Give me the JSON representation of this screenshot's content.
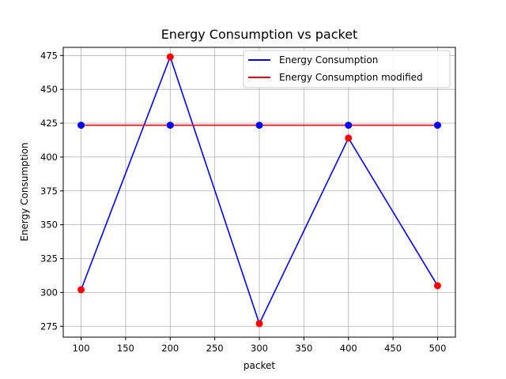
{
  "chart_data": {
    "type": "line",
    "title": "Energy Consumption vs packet",
    "xlabel": "packet",
    "ylabel": "Energy Consumption",
    "x": [
      100,
      200,
      300,
      400,
      500
    ],
    "xlim": [
      80,
      520
    ],
    "ylim": [
      267,
      481
    ],
    "xticks": [
      100,
      150,
      200,
      250,
      300,
      350,
      400,
      450,
      500
    ],
    "yticks": [
      275,
      300,
      325,
      350,
      375,
      400,
      425,
      450,
      475
    ],
    "grid": true,
    "legend_position": "top-right",
    "series": [
      {
        "name": "Energy Consumption",
        "color": "#0000ff",
        "values": [
          302,
          474,
          277,
          414,
          305
        ],
        "markers": [
          423.5,
          423.5,
          423.5,
          423.5,
          423.5
        ],
        "marker_color": "#0000ff"
      },
      {
        "name": "Energy Consumption modified",
        "color": "#ff0000",
        "values": [
          423.5,
          423.5,
          423.5,
          423.5,
          423.5
        ],
        "markers": [
          302,
          474,
          277,
          414,
          305
        ],
        "marker_color": "#ff0000"
      }
    ]
  }
}
